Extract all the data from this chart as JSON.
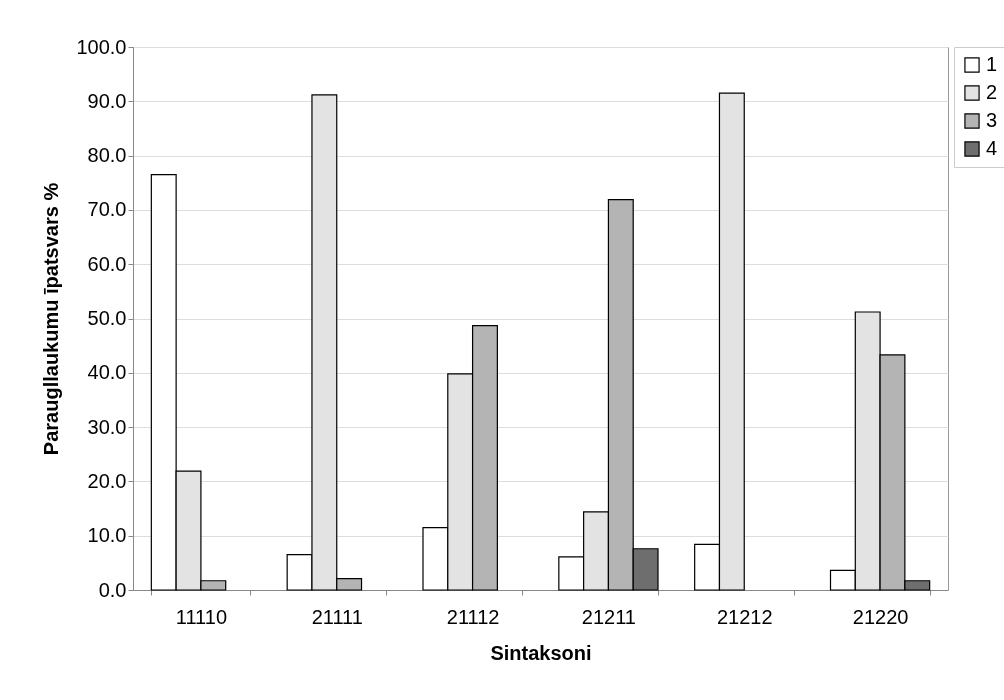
{
  "chart_data": {
    "type": "bar",
    "xlabel": "Sintaksoni",
    "ylabel": "Paraugllaukumu īpatsvars %",
    "categories": [
      "11110",
      "21111",
      "21112",
      "21211",
      "21212",
      "21220"
    ],
    "series": [
      {
        "name": "1",
        "color": "#ffffff",
        "values": [
          76.5,
          6.5,
          11.5,
          6.1,
          8.4,
          3.6
        ]
      },
      {
        "name": "2",
        "color": "#e3e3e3",
        "values": [
          21.9,
          91.2,
          39.8,
          14.4,
          91.5,
          51.2
        ]
      },
      {
        "name": "3",
        "color": "#b4b4b4",
        "values": [
          1.7,
          2.1,
          48.7,
          71.9,
          null,
          43.3
        ]
      },
      {
        "name": "4",
        "color": "#6e6e6e",
        "values": [
          null,
          null,
          null,
          7.6,
          null,
          1.7
        ]
      }
    ],
    "ylim": [
      0,
      100
    ],
    "yticks": [
      {
        "value": 0,
        "label": "0.0"
      },
      {
        "value": 10,
        "label": "10.0"
      },
      {
        "value": 20,
        "label": "20.0"
      },
      {
        "value": 30,
        "label": "30.0"
      },
      {
        "value": 40,
        "label": "40.0"
      },
      {
        "value": 50,
        "label": "50.0"
      },
      {
        "value": 60,
        "label": "60.0"
      },
      {
        "value": 70,
        "label": "70.0"
      },
      {
        "value": 80,
        "label": "80.0"
      },
      {
        "value": 90,
        "label": "90.0"
      },
      {
        "value": 100,
        "label": "100.0"
      }
    ],
    "grid": "y",
    "legend": "right"
  }
}
